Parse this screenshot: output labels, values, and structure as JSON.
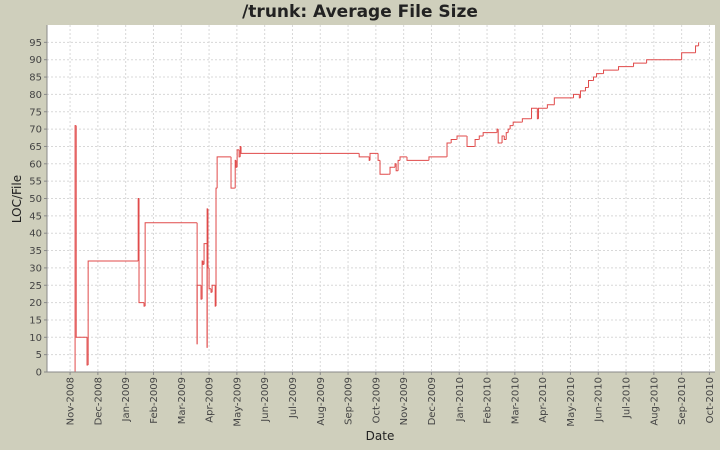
{
  "chart_data": {
    "type": "step",
    "title": "/trunk: Average File Size",
    "x_label": "Date",
    "y_label": "LOC/File",
    "series": [
      {
        "name": "LOC/File",
        "color": "#e04a4a",
        "x": [
          0.18,
          0.18,
          0.22,
          0.61,
          0.61,
          0.65,
          2.45,
          2.45,
          2.48,
          2.66,
          2.66,
          2.7,
          4.53,
          4.57,
          4.57,
          4.68,
          4.71,
          4.75,
          4.78,
          4.82,
          4.89,
          4.93,
          4.93,
          4.96,
          5.0,
          5.07,
          5.11,
          5.18,
          5.22,
          5.25,
          5.29,
          5.76,
          5.79,
          5.9,
          5.94,
          5.97,
          6.01,
          6.08,
          6.12,
          6.15,
          10.36,
          10.4,
          10.72,
          10.76,
          10.79,
          11.04,
          11.08,
          11.15,
          11.44,
          11.51,
          11.63,
          11.69,
          11.73,
          11.8,
          11.87,
          12.09,
          12.12,
          12.88,
          12.91,
          13.53,
          13.56,
          13.67,
          13.71,
          13.89,
          13.92,
          14.25,
          14.28,
          14.54,
          14.57,
          14.68,
          14.72,
          14.86,
          15.33,
          15.36,
          15.4,
          15.47,
          15.54,
          15.62,
          15.69,
          15.76,
          15.83,
          15.94,
          16.23,
          16.27,
          16.56,
          16.6,
          16.78,
          16.81,
          16.85,
          17.14,
          17.17,
          17.39,
          17.42,
          18.07,
          18.11,
          18.29,
          18.32,
          18.36,
          18.5,
          18.54,
          18.61,
          18.65,
          18.79,
          18.83,
          18.9,
          18.94,
          19.15,
          19.19,
          19.69,
          19.73,
          20.23,
          20.27,
          20.7,
          20.74,
          21.96,
          22.0,
          22.46,
          22.5,
          22.61
        ],
        "values": [
          0,
          71,
          10,
          10,
          2,
          32,
          32,
          50,
          20,
          20,
          19,
          43,
          43,
          8,
          25,
          25,
          21,
          32,
          31,
          37,
          37,
          7,
          47,
          30,
          24,
          23,
          25,
          25,
          19,
          53,
          62,
          62,
          53,
          53,
          61,
          59,
          64,
          62,
          65,
          63,
          63,
          62,
          62,
          61,
          63,
          63,
          61,
          57,
          57,
          59,
          59,
          60,
          58,
          61,
          62,
          62,
          61,
          61,
          62,
          62,
          66,
          66,
          67,
          67,
          68,
          68,
          65,
          65,
          67,
          67,
          68,
          69,
          69,
          70,
          66,
          66,
          68,
          67,
          69,
          70,
          71,
          72,
          72,
          73,
          73,
          76,
          76,
          73,
          76,
          76,
          77,
          77,
          79,
          79,
          80,
          80,
          79,
          81,
          81,
          82,
          82,
          84,
          84,
          85,
          85,
          86,
          86,
          87,
          87,
          88,
          88,
          89,
          89,
          90,
          90,
          92,
          92,
          94,
          95
        ]
      }
    ],
    "xlim": [
      -0.83,
      23.2
    ],
    "xticks": [
      {
        "value": 0,
        "label": "Nov-2008"
      },
      {
        "value": 1,
        "label": "Dec-2008"
      },
      {
        "value": 2,
        "label": "Jan-2009"
      },
      {
        "value": 3,
        "label": "Feb-2009"
      },
      {
        "value": 4,
        "label": "Mar-2009"
      },
      {
        "value": 5,
        "label": "Apr-2009"
      },
      {
        "value": 6,
        "label": "May-2009"
      },
      {
        "value": 7,
        "label": "Jun-2009"
      },
      {
        "value": 8,
        "label": "Jul-2009"
      },
      {
        "value": 9,
        "label": "Aug-2009"
      },
      {
        "value": 10,
        "label": "Sep-2009"
      },
      {
        "value": 11,
        "label": "Oct-2009"
      },
      {
        "value": 12,
        "label": "Nov-2009"
      },
      {
        "value": 13,
        "label": "Dec-2009"
      },
      {
        "value": 14,
        "label": "Jan-2010"
      },
      {
        "value": 15,
        "label": "Feb-2010"
      },
      {
        "value": 16,
        "label": "Mar-2010"
      },
      {
        "value": 17,
        "label": "Apr-2010"
      },
      {
        "value": 18,
        "label": "May-2010"
      },
      {
        "value": 19,
        "label": "Jun-2010"
      },
      {
        "value": 20,
        "label": "Jul-2010"
      },
      {
        "value": 21,
        "label": "Aug-2010"
      },
      {
        "value": 22,
        "label": "Sep-2010"
      },
      {
        "value": 23,
        "label": "Oct-2010"
      }
    ],
    "ylim": [
      0,
      100
    ],
    "yticks": [
      0,
      5,
      10,
      15,
      20,
      25,
      30,
      35,
      40,
      45,
      50,
      55,
      60,
      65,
      70,
      75,
      80,
      85,
      90,
      95
    ],
    "grid": true
  }
}
